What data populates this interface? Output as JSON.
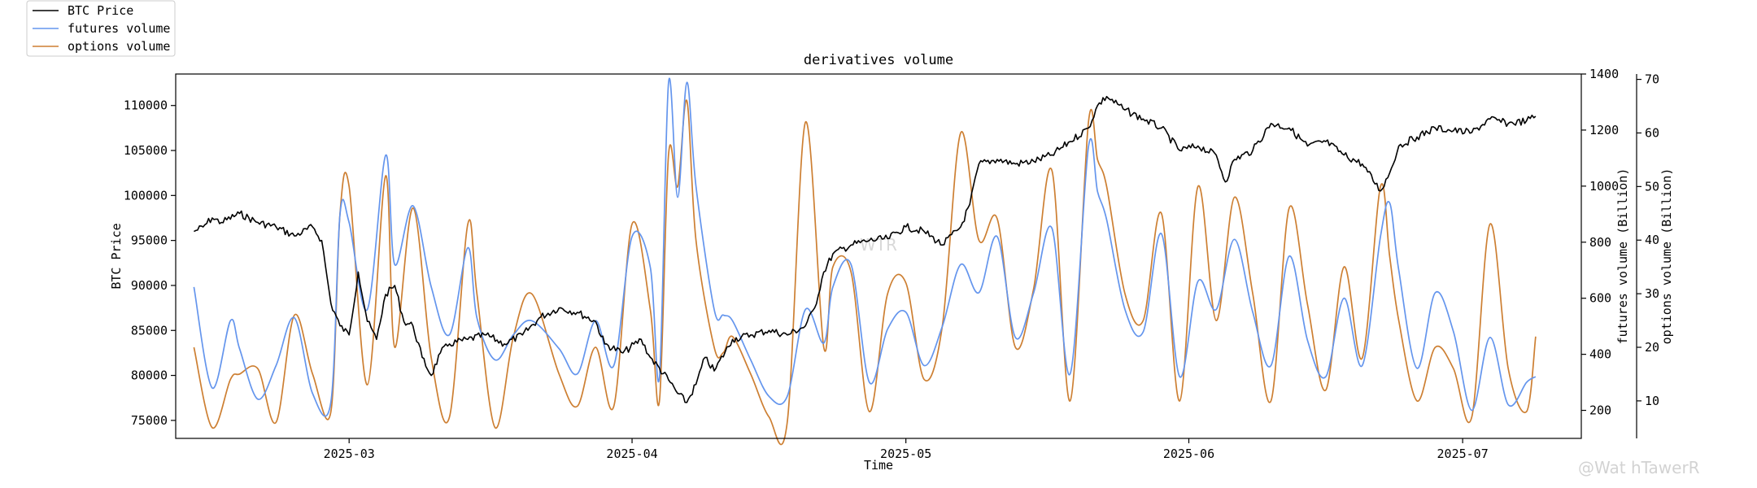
{
  "chart_data": {
    "type": "line",
    "title": "derivatives volume",
    "xlabel": "Time",
    "ylabel_left": "BTC Price",
    "ylabel_right1": "futures volume (Billion)",
    "ylabel_right2": "options volume (Billion)",
    "x_range": [
      "2025-02-10",
      "2025-07-14"
    ],
    "x_ticks": [
      "2025-03",
      "2025-04",
      "2025-05",
      "2025-06",
      "2025-07"
    ],
    "x_tick_dates": [
      "2025-03-01",
      "2025-04-01",
      "2025-05-01",
      "2025-06-01",
      "2025-07-01"
    ],
    "y_left": {
      "range": [
        73000,
        113500
      ],
      "ticks": [
        75000,
        80000,
        85000,
        90000,
        95000,
        100000,
        105000,
        110000
      ]
    },
    "y_right1": {
      "range": [
        100,
        1400
      ],
      "ticks": [
        200,
        400,
        600,
        800,
        1000,
        1200,
        1400
      ]
    },
    "y_right2": {
      "range": [
        3,
        71
      ],
      "ticks": [
        10,
        20,
        30,
        40,
        50,
        60,
        70
      ]
    },
    "legend": {
      "placement": "top-left",
      "entries": [
        "BTC Price",
        "futures volume",
        "options volume"
      ]
    },
    "colors": {
      "btc": "#000000",
      "futures": "#6495ED",
      "options": "#CD7F32"
    },
    "grid": false,
    "series": [
      {
        "name": "BTC Price",
        "axis": "left",
        "x": [
          "2025-02-12",
          "2025-02-13",
          "2025-02-14",
          "2025-02-15",
          "2025-02-17",
          "2025-02-19",
          "2025-02-21",
          "2025-02-23",
          "2025-02-25",
          "2025-02-26",
          "2025-02-27",
          "2025-02-28",
          "2025-03-01",
          "2025-03-02",
          "2025-03-03",
          "2025-03-04",
          "2025-03-05",
          "2025-03-06",
          "2025-03-07",
          "2025-03-08",
          "2025-03-09",
          "2025-03-10",
          "2025-03-11",
          "2025-03-12",
          "2025-03-14",
          "2025-03-16",
          "2025-03-18",
          "2025-03-20",
          "2025-03-22",
          "2025-03-24",
          "2025-03-26",
          "2025-03-28",
          "2025-03-29",
          "2025-03-31",
          "2025-04-02",
          "2025-04-03",
          "2025-04-05",
          "2025-04-06",
          "2025-04-07",
          "2025-04-08",
          "2025-04-09",
          "2025-04-10",
          "2025-04-12",
          "2025-04-14",
          "2025-04-16",
          "2025-04-18",
          "2025-04-20",
          "2025-04-21",
          "2025-04-22",
          "2025-04-23",
          "2025-04-25",
          "2025-04-27",
          "2025-04-29",
          "2025-05-01",
          "2025-05-03",
          "2025-05-05",
          "2025-05-07",
          "2025-05-08",
          "2025-05-09",
          "2025-05-11",
          "2025-05-13",
          "2025-05-15",
          "2025-05-17",
          "2025-05-19",
          "2025-05-21",
          "2025-05-22",
          "2025-05-23",
          "2025-05-25",
          "2025-05-27",
          "2025-05-29",
          "2025-05-31",
          "2025-06-02",
          "2025-06-04",
          "2025-06-05",
          "2025-06-06",
          "2025-06-08",
          "2025-06-10",
          "2025-06-12",
          "2025-06-14",
          "2025-06-16",
          "2025-06-18",
          "2025-06-20",
          "2025-06-22",
          "2025-06-23",
          "2025-06-24",
          "2025-06-26",
          "2025-06-28",
          "2025-06-30",
          "2025-07-02",
          "2025-07-04",
          "2025-07-06",
          "2025-07-08",
          "2025-07-09"
        ],
        "values": [
          96000,
          96500,
          97500,
          97000,
          98000,
          97000,
          96500,
          95500,
          96500,
          95000,
          88000,
          85500,
          84500,
          91500,
          86000,
          84000,
          89000,
          90000,
          86000,
          85500,
          82000,
          80000,
          82500,
          83500,
          84000,
          84500,
          83500,
          84500,
          86500,
          87500,
          87000,
          86000,
          83500,
          82500,
          84000,
          82000,
          79500,
          78000,
          77000,
          79000,
          82000,
          80500,
          84000,
          84500,
          85000,
          84500,
          85500,
          87500,
          91500,
          93500,
          94500,
          95000,
          95200,
          96500,
          96000,
          94500,
          96500,
          99000,
          103500,
          104000,
          103500,
          103800,
          104500,
          106000,
          107500,
          110000,
          111000,
          109500,
          108500,
          107500,
          105000,
          105500,
          104500,
          101500,
          104000,
          105000,
          108000,
          107500,
          105500,
          106000,
          104500,
          103500,
          100500,
          102500,
          105500,
          106500,
          107500,
          107200,
          107000,
          108500,
          108000,
          108300,
          108800
        ]
      },
      {
        "name": "futures volume",
        "axis": "right1",
        "x": [
          "2025-02-12",
          "2025-02-14",
          "2025-02-16",
          "2025-02-17",
          "2025-02-19",
          "2025-02-21",
          "2025-02-23",
          "2025-02-25",
          "2025-02-27",
          "2025-02-28",
          "2025-03-01",
          "2025-03-03",
          "2025-03-05",
          "2025-03-06",
          "2025-03-08",
          "2025-03-10",
          "2025-03-12",
          "2025-03-14",
          "2025-03-15",
          "2025-03-17",
          "2025-03-19",
          "2025-03-21",
          "2025-03-24",
          "2025-03-26",
          "2025-03-28",
          "2025-03-30",
          "2025-04-01",
          "2025-04-03",
          "2025-04-04",
          "2025-04-05",
          "2025-04-06",
          "2025-04-07",
          "2025-04-08",
          "2025-04-10",
          "2025-04-11",
          "2025-04-12",
          "2025-04-14",
          "2025-04-16",
          "2025-04-18",
          "2025-04-20",
          "2025-04-22",
          "2025-04-23",
          "2025-04-25",
          "2025-04-27",
          "2025-04-29",
          "2025-05-01",
          "2025-05-03",
          "2025-05-05",
          "2025-05-07",
          "2025-05-09",
          "2025-05-11",
          "2025-05-13",
          "2025-05-15",
          "2025-05-17",
          "2025-05-19",
          "2025-05-21",
          "2025-05-22",
          "2025-05-23",
          "2025-05-25",
          "2025-05-27",
          "2025-05-29",
          "2025-05-31",
          "2025-06-02",
          "2025-06-04",
          "2025-06-06",
          "2025-06-08",
          "2025-06-10",
          "2025-06-12",
          "2025-06-14",
          "2025-06-16",
          "2025-06-18",
          "2025-06-20",
          "2025-06-22",
          "2025-06-23",
          "2025-06-24",
          "2025-06-26",
          "2025-06-28",
          "2025-06-30",
          "2025-07-02",
          "2025-07-04",
          "2025-07-06",
          "2025-07-08",
          "2025-07-09"
        ],
        "values": [
          640,
          280,
          520,
          420,
          240,
          360,
          530,
          260,
          230,
          900,
          870,
          560,
          1110,
          720,
          930,
          640,
          470,
          780,
          530,
          380,
          470,
          520,
          420,
          330,
          520,
          360,
          820,
          710,
          320,
          1370,
          960,
          1370,
          1000,
          560,
          540,
          520,
          380,
          250,
          250,
          560,
          440,
          640,
          720,
          300,
          490,
          550,
          360,
          500,
          720,
          620,
          820,
          460,
          620,
          850,
          330,
          1140,
          980,
          880,
          560,
          480,
          830,
          320,
          660,
          560,
          810,
          550,
          360,
          750,
          450,
          320,
          600,
          360,
          820,
          940,
          700,
          350,
          620,
          480,
          200,
          460,
          220,
          300,
          320
        ]
      },
      {
        "name": "options volume",
        "axis": "right2",
        "x": [
          "2025-02-12",
          "2025-02-14",
          "2025-02-16",
          "2025-02-17",
          "2025-02-19",
          "2025-02-21",
          "2025-02-23",
          "2025-02-25",
          "2025-02-27",
          "2025-02-28",
          "2025-03-01",
          "2025-03-03",
          "2025-03-05",
          "2025-03-06",
          "2025-03-08",
          "2025-03-10",
          "2025-03-12",
          "2025-03-14",
          "2025-03-15",
          "2025-03-17",
          "2025-03-19",
          "2025-03-21",
          "2025-03-24",
          "2025-03-26",
          "2025-03-28",
          "2025-03-30",
          "2025-04-01",
          "2025-04-03",
          "2025-04-04",
          "2025-04-05",
          "2025-04-06",
          "2025-04-07",
          "2025-04-08",
          "2025-04-10",
          "2025-04-11",
          "2025-04-12",
          "2025-04-14",
          "2025-04-16",
          "2025-04-18",
          "2025-04-20",
          "2025-04-22",
          "2025-04-23",
          "2025-04-25",
          "2025-04-27",
          "2025-04-29",
          "2025-05-01",
          "2025-05-03",
          "2025-05-05",
          "2025-05-07",
          "2025-05-09",
          "2025-05-11",
          "2025-05-13",
          "2025-05-15",
          "2025-05-17",
          "2025-05-19",
          "2025-05-21",
          "2025-05-22",
          "2025-05-23",
          "2025-05-25",
          "2025-05-27",
          "2025-05-29",
          "2025-05-31",
          "2025-06-02",
          "2025-06-04",
          "2025-06-06",
          "2025-06-08",
          "2025-06-10",
          "2025-06-12",
          "2025-06-14",
          "2025-06-16",
          "2025-06-18",
          "2025-06-20",
          "2025-06-22",
          "2025-06-23",
          "2025-06-24",
          "2025-06-26",
          "2025-06-28",
          "2025-06-30",
          "2025-07-02",
          "2025-07-04",
          "2025-07-06",
          "2025-07-08",
          "2025-07-09"
        ],
        "values": [
          20,
          5,
          14,
          15,
          16,
          6,
          26,
          15,
          8,
          45,
          50,
          13,
          52,
          20,
          46,
          18,
          7,
          43,
          30,
          5,
          22,
          30,
          15,
          9,
          20,
          9,
          43,
          27,
          10,
          56,
          50,
          66,
          40,
          20,
          19,
          22,
          15,
          7,
          6,
          62,
          20,
          35,
          34,
          8,
          30,
          32,
          14,
          24,
          60,
          40,
          44,
          20,
          31,
          53,
          10,
          62,
          55,
          50,
          30,
          25,
          45,
          10,
          50,
          25,
          48,
          30,
          10,
          46,
          28,
          12,
          35,
          18,
          50,
          37,
          25,
          10,
          20,
          16,
          7,
          43,
          16,
          8,
          22
        ]
      }
    ]
  },
  "watermark": {
    "center": "WTR",
    "corner": "@Wat hTawerR"
  }
}
